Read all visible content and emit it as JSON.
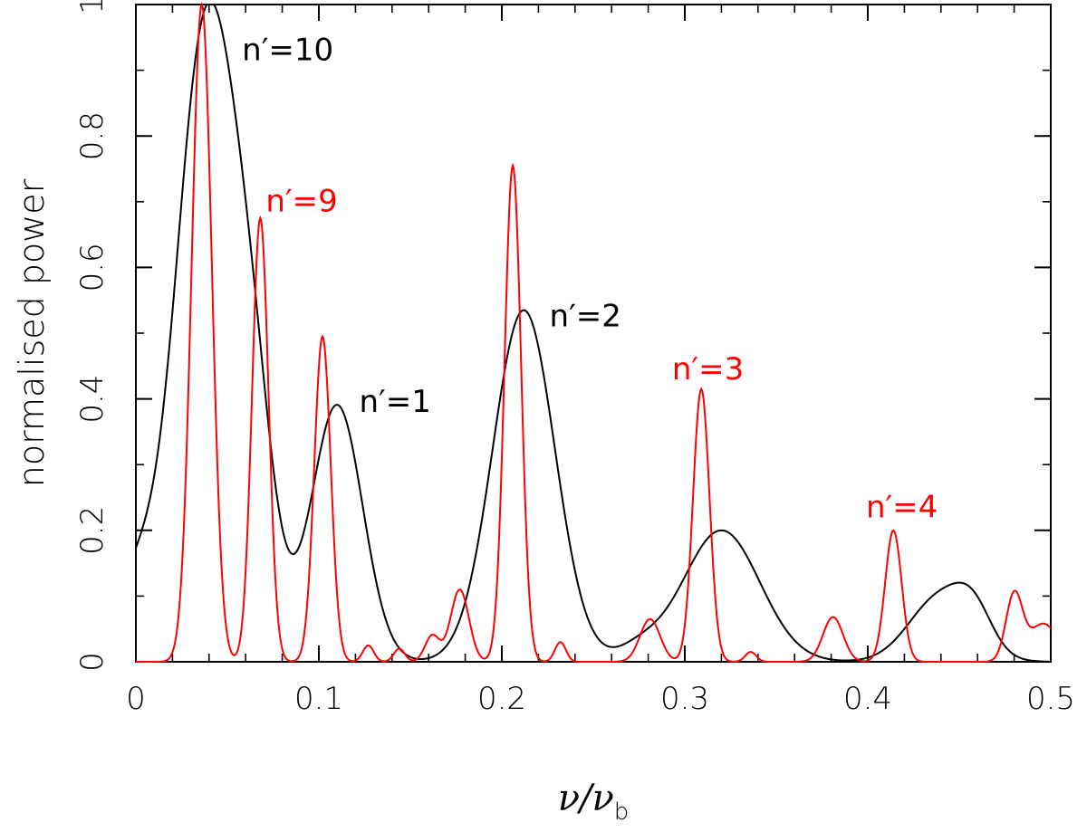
{
  "chart_data": {
    "type": "line",
    "title": "",
    "xlabel_symbol": "ν/ν",
    "xlabel_subscript": "b",
    "ylabel": "normalised power",
    "xlim": [
      0,
      0.5
    ],
    "ylim": [
      0,
      1
    ],
    "x_ticks": [
      0,
      0.1,
      0.2,
      0.3,
      0.4,
      0.5
    ],
    "y_ticks": [
      0,
      0.2,
      0.4,
      0.6,
      0.8,
      1
    ],
    "x_tick_labels": [
      "0",
      "0.1",
      "0.2",
      "0.3",
      "0.4",
      "0.5"
    ],
    "y_tick_labels": [
      "0",
      "0.2",
      "0.4",
      "0.6",
      "0.8",
      "1"
    ],
    "grid": false,
    "series": [
      {
        "color": "#000000",
        "peaks": [
          {
            "x": 0.044,
            "h": 0.88,
            "w": 0.018
          },
          {
            "x": 0.03,
            "h": 0.2,
            "w": 0.012
          },
          {
            "x": 0.066,
            "h": 0.12,
            "w": 0.01
          },
          {
            "x": 0.11,
            "h": 0.39,
            "w": 0.014
          },
          {
            "x": 0.212,
            "h": 0.535,
            "w": 0.017
          },
          {
            "x": 0.32,
            "h": 0.2,
            "w": 0.021
          },
          {
            "x": 0.275,
            "h": 0.02,
            "w": 0.012
          },
          {
            "x": 0.44,
            "h": 0.1,
            "w": 0.017
          },
          {
            "x": 0.458,
            "h": 0.05,
            "w": 0.01
          },
          {
            "x": 0.0,
            "h": 0.12,
            "w": 0.012
          }
        ]
      },
      {
        "color": "#ff0000",
        "peaks": [
          {
            "x": 0.036,
            "h": 1.0,
            "w": 0.0055
          },
          {
            "x": 0.068,
            "h": 0.675,
            "w": 0.0045
          },
          {
            "x": 0.102,
            "h": 0.495,
            "w": 0.0045
          },
          {
            "x": 0.127,
            "h": 0.025,
            "w": 0.003
          },
          {
            "x": 0.144,
            "h": 0.02,
            "w": 0.003
          },
          {
            "x": 0.162,
            "h": 0.04,
            "w": 0.004
          },
          {
            "x": 0.177,
            "h": 0.11,
            "w": 0.005
          },
          {
            "x": 0.206,
            "h": 0.755,
            "w": 0.0045
          },
          {
            "x": 0.232,
            "h": 0.03,
            "w": 0.003
          },
          {
            "x": 0.281,
            "h": 0.065,
            "w": 0.0055
          },
          {
            "x": 0.309,
            "h": 0.415,
            "w": 0.0045
          },
          {
            "x": 0.336,
            "h": 0.015,
            "w": 0.003
          },
          {
            "x": 0.381,
            "h": 0.068,
            "w": 0.0055
          },
          {
            "x": 0.414,
            "h": 0.2,
            "w": 0.0045
          },
          {
            "x": 0.48,
            "h": 0.1,
            "w": 0.0045
          },
          {
            "x": 0.496,
            "h": 0.058,
            "w": 0.008
          }
        ]
      }
    ],
    "annotations": [
      {
        "text": "n′=10",
        "x": 0.058,
        "y": 0.915,
        "color": "#000000"
      },
      {
        "text": "n′=9",
        "x": 0.071,
        "y": 0.685,
        "color": "#ff0000"
      },
      {
        "text": "n′=1",
        "x": 0.122,
        "y": 0.38,
        "color": "#000000"
      },
      {
        "text": "n′=2",
        "x": 0.226,
        "y": 0.51,
        "color": "#000000"
      },
      {
        "text": "n′=3",
        "x": 0.293,
        "y": 0.43,
        "color": "#ff0000"
      },
      {
        "text": "n′=4",
        "x": 0.399,
        "y": 0.22,
        "color": "#ff0000"
      }
    ]
  }
}
